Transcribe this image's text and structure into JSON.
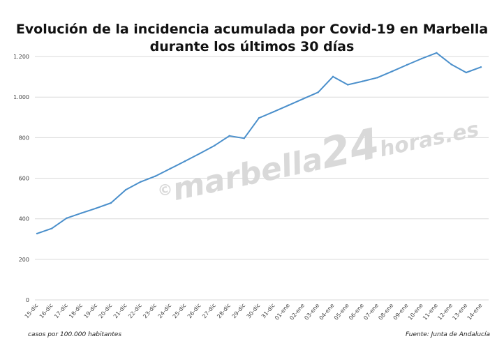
{
  "title_line1": "Evolución de la incidencia acumulada por Covid-19 en Marbella",
  "title_line2": "durante los últimos 30 días",
  "footer_left": "casos por 100.000 habitantes",
  "footer_right": "Fuente: Junta de Andalucía",
  "watermark": {
    "copyright": "©",
    "part1": "marbella",
    "part2": "24",
    "part3": "horas",
    "part4": ".es"
  },
  "colors": {
    "line": "#4a8fcb",
    "grid": "#d9d9d9",
    "axis_text": "#444444"
  },
  "chart_data": {
    "type": "line",
    "title": "Evolución de la incidencia acumulada por Covid-19 en Marbella durante los últimos 30 días",
    "ylabel": "casos por 100.000 habitantes",
    "ylim": [
      0,
      1300
    ],
    "y_ticks": [
      0,
      200,
      400,
      600,
      800,
      1000,
      1200
    ],
    "y_tick_labels": [
      "0",
      "200",
      "400",
      "600",
      "800",
      "1.000",
      "1.200"
    ],
    "grid": true,
    "categories": [
      "15-dic",
      "16-dic",
      "17-dic",
      "18-dic",
      "19-dic",
      "20-dic",
      "21-dic",
      "22-dic",
      "23-dic",
      "24-dic",
      "25-dic",
      "26-dic",
      "27-dic",
      "28-dic",
      "29-dic",
      "30-dic",
      "31-dic",
      "01-ene",
      "02-ene",
      "03-ene",
      "04-ene",
      "05-ene",
      "06-ene",
      "07-ene",
      "08-ene",
      "09-ene",
      "10-ene",
      "11-ene",
      "12-ene",
      "13-ene",
      "14-ene"
    ],
    "series": [
      {
        "values": [
          327,
          352,
          403,
          428,
          452,
          478,
          543,
          582,
          610,
          647,
          684,
          722,
          761,
          809,
          797,
          897,
          928,
          960,
          992,
          1024,
          1101,
          1061,
          1078,
          1096,
          1127,
          1159,
          1190,
          1218,
          1161,
          1121,
          1148
        ]
      }
    ]
  }
}
